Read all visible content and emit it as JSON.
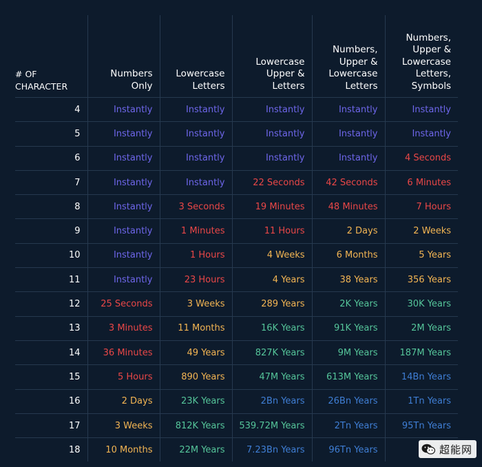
{
  "chart_data": {
    "type": "table",
    "columns": [
      "# OF\nCHARACTER",
      "Numbers\nOnly",
      "Lowercase\nLetters",
      "Lowercase\nUpper &\nLetters",
      "Numbers,\nUpper &\nLowercase\nLetters",
      "Numbers,\nUpper &\nLowercase\nLetters,\nSymbols"
    ],
    "rows": [
      [
        "4",
        "Instantly",
        "Instantly",
        "Instantly",
        "Instantly",
        "Instantly"
      ],
      [
        "5",
        "Instantly",
        "Instantly",
        "Instantly",
        "Instantly",
        "Instantly"
      ],
      [
        "6",
        "Instantly",
        "Instantly",
        "Instantly",
        "Instantly",
        "4 Seconds"
      ],
      [
        "7",
        "Instantly",
        "Instantly",
        "22 Seconds",
        "42 Seconds",
        "6 Minutes"
      ],
      [
        "8",
        "Instantly",
        "3 Seconds",
        "19 Minutes",
        "48 Minutes",
        "7 Hours"
      ],
      [
        "9",
        "Instantly",
        "1 Minutes",
        "11 Hours",
        "2 Days",
        "2 Weeks"
      ],
      [
        "10",
        "Instantly",
        "1 Hours",
        "4 Weeks",
        "6 Months",
        "5 Years"
      ],
      [
        "11",
        "Instantly",
        "23 Hours",
        "4 Years",
        "38 Years",
        "356 Years"
      ],
      [
        "12",
        "25 Seconds",
        "3 Weeks",
        "289 Years",
        "2K Years",
        "30K Years"
      ],
      [
        "13",
        "3 Minutes",
        "11 Months",
        "16K Years",
        "91K Years",
        "2M Years"
      ],
      [
        "14",
        "36 Minutes",
        "49 Years",
        "827K Years",
        "9M Years",
        "187M Years"
      ],
      [
        "15",
        "5 Hours",
        "890 Years",
        "47M Years",
        "613M Years",
        "14Bn Years"
      ],
      [
        "16",
        "2 Days",
        "23K Years",
        "2Bn Years",
        "26Bn Years",
        "1Tn Years"
      ],
      [
        "17",
        "3 Weeks",
        "812K Years",
        "539.72M Years",
        "2Tn Years",
        "95Tn Years"
      ],
      [
        "18",
        "10 Months",
        "22M Years",
        "7.23Bn Years",
        "96Tn Years",
        ""
      ]
    ],
    "tiers": [
      [
        "",
        "instant",
        "instant",
        "instant",
        "instant",
        "instant"
      ],
      [
        "",
        "instant",
        "instant",
        "instant",
        "instant",
        "instant"
      ],
      [
        "",
        "instant",
        "instant",
        "instant",
        "instant",
        "red"
      ],
      [
        "",
        "instant",
        "instant",
        "red",
        "red",
        "red"
      ],
      [
        "",
        "instant",
        "red",
        "red",
        "red",
        "red"
      ],
      [
        "",
        "instant",
        "red",
        "red",
        "orange",
        "orange"
      ],
      [
        "",
        "instant",
        "red",
        "orange",
        "orange",
        "orange"
      ],
      [
        "",
        "instant",
        "red",
        "orange",
        "orange",
        "orange"
      ],
      [
        "",
        "red",
        "orange",
        "orange",
        "green",
        "green"
      ],
      [
        "",
        "red",
        "orange",
        "green",
        "green",
        "green"
      ],
      [
        "",
        "red",
        "orange",
        "green",
        "green",
        "green"
      ],
      [
        "",
        "red",
        "orange",
        "green",
        "green",
        "blue"
      ],
      [
        "",
        "orange",
        "green",
        "blue",
        "blue",
        "blue"
      ],
      [
        "",
        "orange",
        "green",
        "green",
        "blue",
        "blue"
      ],
      [
        "",
        "orange",
        "green",
        "blue",
        "blue",
        "blue"
      ]
    ],
    "tier_colors": {
      "instant": "#6e66ea",
      "red": "#ea4747",
      "orange": "#f3b553",
      "green": "#55c59a",
      "blue": "#3f7ed4"
    },
    "background": "#0d1b2c",
    "grid_line_color": "#26394f"
  },
  "watermark": {
    "text": "超能网",
    "icon": "wechat-official-account-icon"
  }
}
